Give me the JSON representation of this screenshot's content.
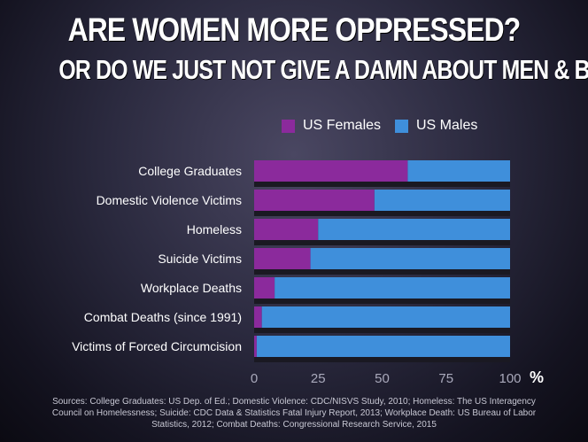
{
  "title_line1": "ARE WOMEN MORE OPPRESSED?",
  "title_line2": "OR DO WE JUST NOT GIVE A DAMN ABOUT MEN & BOYS?",
  "colors": {
    "females": "#8b2a9c",
    "males": "#3f8fdb",
    "background": "#2b2a3f"
  },
  "source": "Sources: College Graduates: US Dep. of Ed.; Domestic Violence: CDC/NISVS Study, 2010; Homeless: The US Interagency Council on Homelessness; Suicide: CDC Data & Statistics Fatal Injury Report, 2013; Workplace Death: US Bureau of Labor Statistics, 2012; Combat Deaths: Congressional Research Service, 2015",
  "chart_data": {
    "type": "bar",
    "orientation": "horizontal",
    "stacked": true,
    "categories": [
      "College Graduates",
      "Domestic Violence Victims",
      "Homeless",
      "Suicide Victims",
      "Workplace Deaths",
      "Combat Deaths (since 1991)",
      "Victims of Forced Circumcision"
    ],
    "series": [
      {
        "name": "US Females",
        "values": [
          60,
          47,
          25,
          22,
          8,
          3,
          1
        ]
      },
      {
        "name": "US Males",
        "values": [
          40,
          53,
          75,
          78,
          92,
          97,
          99
        ]
      }
    ],
    "xlim": [
      0,
      100
    ],
    "xticks": [
      "0",
      "25",
      "50",
      "75",
      "100"
    ],
    "xunit": "%",
    "legend": "top",
    "grid": false
  }
}
